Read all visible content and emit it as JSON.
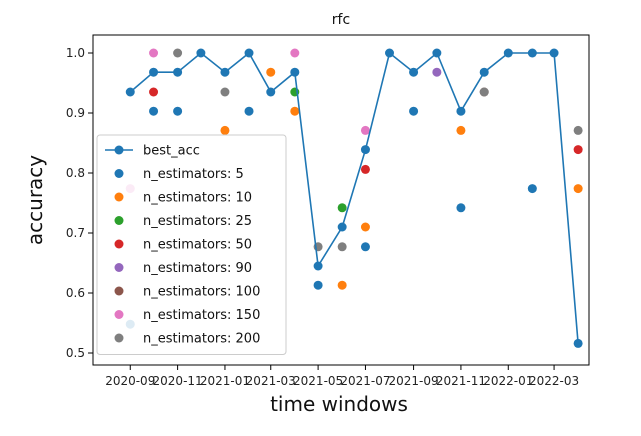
{
  "chart_data": {
    "type": "scatter",
    "title": "rfc",
    "xlabel": "time windows",
    "ylabel": "accuracy",
    "ylim": [
      0.48,
      1.03
    ],
    "xlim": [
      "2020-07-15",
      "2022-04-15"
    ],
    "grid": false,
    "legend_position": "center-left",
    "xticks": [
      "2020-09",
      "2020-11",
      "2021-01",
      "2021-03",
      "2021-05",
      "2021-07",
      "2021-09",
      "2021-11",
      "2022-01",
      "2022-03"
    ],
    "yticks": [
      "0.5",
      "0.6",
      "0.7",
      "0.8",
      "0.9",
      "1.0"
    ],
    "series": [
      {
        "name": "best_acc",
        "kind": "line",
        "color": "#1f77b4",
        "points": [
          [
            "2020-09-01",
            0.935
          ],
          [
            "2020-10-01",
            0.968
          ],
          [
            "2020-11-01",
            0.968
          ],
          [
            "2020-12-01",
            1.0
          ],
          [
            "2021-01-01",
            0.968
          ],
          [
            "2021-02-01",
            1.0
          ],
          [
            "2021-03-01",
            0.935
          ],
          [
            "2021-04-01",
            0.968
          ],
          [
            "2021-05-01",
            0.645
          ],
          [
            "2021-06-01",
            0.71
          ],
          [
            "2021-07-01",
            0.839
          ],
          [
            "2021-08-01",
            1.0
          ],
          [
            "2021-09-01",
            0.968
          ],
          [
            "2021-10-01",
            1.0
          ],
          [
            "2021-11-01",
            0.903
          ],
          [
            "2021-12-01",
            0.968
          ],
          [
            "2022-01-01",
            1.0
          ],
          [
            "2022-02-01",
            1.0
          ],
          [
            "2022-03-01",
            1.0
          ],
          [
            "2022-04-01",
            0.516
          ]
        ]
      },
      {
        "name": "n_estimators: 5",
        "kind": "scatter",
        "color": "#1f77b4",
        "points": [
          [
            "2020-09-01",
            0.548
          ],
          [
            "2020-10-01",
            0.903
          ],
          [
            "2020-11-01",
            0.903
          ],
          [
            "2021-02-01",
            0.903
          ],
          [
            "2021-05-01",
            0.613
          ],
          [
            "2021-07-01",
            0.677
          ],
          [
            "2021-09-01",
            0.903
          ],
          [
            "2021-11-01",
            0.742
          ],
          [
            "2022-02-01",
            0.774
          ]
        ]
      },
      {
        "name": "n_estimators: 10",
        "kind": "scatter",
        "color": "#ff7f0e",
        "points": [
          [
            "2021-01-01",
            0.871
          ],
          [
            "2021-03-01",
            0.968
          ],
          [
            "2021-04-01",
            0.903
          ],
          [
            "2021-06-01",
            0.613
          ],
          [
            "2021-07-01",
            0.71
          ],
          [
            "2021-11-01",
            0.871
          ],
          [
            "2022-04-01",
            0.774
          ]
        ]
      },
      {
        "name": "n_estimators: 25",
        "kind": "scatter",
        "color": "#2ca02c",
        "points": [
          [
            "2021-04-01",
            0.935
          ],
          [
            "2021-06-01",
            0.742
          ]
        ]
      },
      {
        "name": "n_estimators: 50",
        "kind": "scatter",
        "color": "#d62728",
        "points": [
          [
            "2020-10-01",
            0.935
          ],
          [
            "2021-07-01",
            0.806
          ],
          [
            "2022-04-01",
            0.839
          ]
        ]
      },
      {
        "name": "n_estimators: 90",
        "kind": "scatter",
        "color": "#9467bd",
        "points": [
          [
            "2021-10-01",
            0.968
          ]
        ]
      },
      {
        "name": "n_estimators: 100",
        "kind": "scatter",
        "color": "#8c564b",
        "points": [
          [
            "2021-12-01",
            0.935
          ]
        ]
      },
      {
        "name": "n_estimators: 150",
        "kind": "scatter",
        "color": "#e377c2",
        "points": [
          [
            "2020-09-01",
            0.774
          ],
          [
            "2020-10-01",
            1.0
          ],
          [
            "2021-04-01",
            1.0
          ],
          [
            "2021-07-01",
            0.871
          ]
        ]
      },
      {
        "name": "n_estimators: 200",
        "kind": "scatter",
        "color": "#7f7f7f",
        "points": [
          [
            "2020-11-01",
            1.0
          ],
          [
            "2021-01-01",
            0.935
          ],
          [
            "2021-05-01",
            0.677
          ],
          [
            "2021-06-01",
            0.677
          ],
          [
            "2021-12-01",
            0.935
          ],
          [
            "2022-04-01",
            0.871
          ]
        ]
      }
    ]
  }
}
